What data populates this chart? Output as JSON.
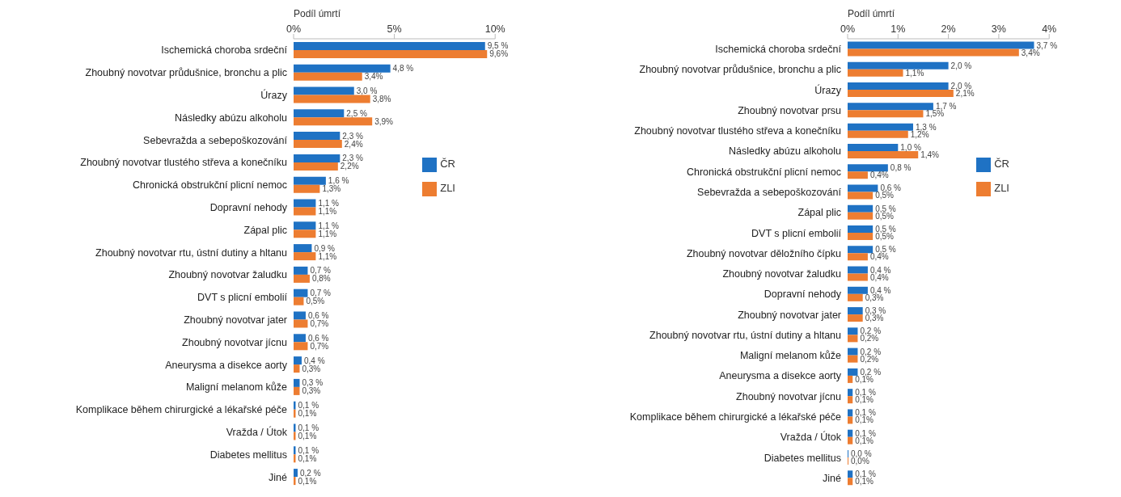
{
  "chart_data": [
    {
      "type": "bar",
      "orientation": "horizontal",
      "xlabel": "Podíl úmrtí",
      "xlim": [
        0,
        10
      ],
      "xticks": [
        {
          "value": 0,
          "label": "0%"
        },
        {
          "value": 5,
          "label": "5%"
        },
        {
          "value": 10,
          "label": "10%"
        }
      ],
      "legend": "right",
      "grid": false,
      "categories": [
        "Ischemická choroba srdeční",
        "Zhoubný novotvar průdušnice, bronchu a plic",
        "Úrazy",
        "Následky abúzu alkoholu",
        "Sebevražda a sebepoškozování",
        "Zhoubný novotvar tlustého střeva a konečníku",
        "Chronická obstrukční plicní nemoc",
        "Dopravní nehody",
        "Zápal plic",
        "Zhoubný novotvar rtu, ústní dutiny a hltanu",
        "Zhoubný novotvar žaludku",
        "DVT s plicní embolií",
        "Zhoubný novotvar jater",
        "Zhoubný novotvar jícnu",
        "Aneurysma a disekce aorty",
        "Maligní melanom kůže",
        "Komplikace během chirurgické a lékařské péče",
        "Vražda / Útok",
        "Diabetes mellitus",
        "Jiné"
      ],
      "series": [
        {
          "name": "ČR",
          "color": "#1f72c4",
          "values": [
            9.5,
            4.8,
            3.0,
            2.5,
            2.3,
            2.3,
            1.6,
            1.1,
            1.1,
            0.9,
            0.7,
            0.7,
            0.6,
            0.6,
            0.4,
            0.3,
            0.1,
            0.1,
            0.1,
            0.2
          ],
          "value_labels": [
            "9,5 %",
            "4,8 %",
            "3,0 %",
            "2,5 %",
            "2,3 %",
            "2,3 %",
            "1,6 %",
            "1,1 %",
            "1,1 %",
            "0,9 %",
            "0,7 %",
            "0,7 %",
            "0,6 %",
            "0,6 %",
            "0,4 %",
            "0,3 %",
            "0,1 %",
            "0,1 %",
            "0,1 %",
            "0,2 %"
          ]
        },
        {
          "name": "ZLI",
          "color": "#ed7d31",
          "values": [
            9.6,
            3.4,
            3.8,
            3.9,
            2.4,
            2.2,
            1.3,
            1.1,
            1.1,
            1.1,
            0.8,
            0.5,
            0.7,
            0.7,
            0.3,
            0.3,
            0.1,
            0.1,
            0.1,
            0.1
          ],
          "value_labels": [
            "9,6%",
            "3,4%",
            "3,8%",
            "3,9%",
            "2,4%",
            "2,2%",
            "1,3%",
            "1,1%",
            "1,1%",
            "1,1%",
            "0,8%",
            "0,5%",
            "0,7%",
            "0,7%",
            "0,3%",
            "0,3%",
            "0,1%",
            "0,1%",
            "0,1%",
            "0,1%"
          ]
        }
      ]
    },
    {
      "type": "bar",
      "orientation": "horizontal",
      "xlabel": "Podíl úmrtí",
      "xlim": [
        0,
        4
      ],
      "xticks": [
        {
          "value": 0,
          "label": "0%"
        },
        {
          "value": 1,
          "label": "1%"
        },
        {
          "value": 2,
          "label": "2%"
        },
        {
          "value": 3,
          "label": "3%"
        },
        {
          "value": 4,
          "label": "4%"
        }
      ],
      "legend": "right",
      "grid": false,
      "categories": [
        "Ischemická choroba srdeční",
        "Zhoubný novotvar průdušnice, bronchu a plic",
        "Úrazy",
        "Zhoubný novotvar prsu",
        "Zhoubný novotvar tlustého střeva a konečníku",
        "Následky abúzu alkoholu",
        "Chronická obstrukční plicní nemoc",
        "Sebevražda a sebepoškozování",
        "Zápal plic",
        "DVT s plicní embolií",
        "Zhoubný novotvar děložního čípku",
        "Zhoubný novotvar žaludku",
        "Dopravní nehody",
        "Zhoubný novotvar jater",
        "Zhoubný novotvar rtu, ústní dutiny a hltanu",
        "Maligní melanom kůže",
        "Aneurysma a disekce aorty",
        "Zhoubný novotvar jícnu",
        "Komplikace během chirurgické a lékařské péče",
        "Vražda / Útok",
        "Diabetes mellitus",
        "Jiné"
      ],
      "series": [
        {
          "name": "ČR",
          "color": "#1f72c4",
          "values": [
            3.7,
            2.0,
            2.0,
            1.7,
            1.3,
            1.0,
            0.8,
            0.6,
            0.5,
            0.5,
            0.5,
            0.4,
            0.4,
            0.3,
            0.2,
            0.2,
            0.2,
            0.1,
            0.1,
            0.1,
            0.0,
            0.1
          ],
          "value_labels": [
            "3,7 %",
            "2,0 %",
            "2,0 %",
            "1,7 %",
            "1,3 %",
            "1,0 %",
            "0,8 %",
            "0,6 %",
            "0,5 %",
            "0,5 %",
            "0,5 %",
            "0,4 %",
            "0,4 %",
            "0,3 %",
            "0,2 %",
            "0,2 %",
            "0,2 %",
            "0,1 %",
            "0,1 %",
            "0,1 %",
            "0,0 %",
            "0,1 %"
          ]
        },
        {
          "name": "ZLI",
          "color": "#ed7d31",
          "values": [
            3.4,
            1.1,
            2.1,
            1.5,
            1.2,
            1.4,
            0.4,
            0.5,
            0.5,
            0.5,
            0.4,
            0.4,
            0.3,
            0.3,
            0.2,
            0.2,
            0.1,
            0.1,
            0.1,
            0.1,
            0.0,
            0.1
          ],
          "value_labels": [
            "3,4%",
            "1,1%",
            "2,1%",
            "1,5%",
            "1,2%",
            "1,4%",
            "0,4%",
            "0,5%",
            "0,5%",
            "0,5%",
            "0,4%",
            "0,4%",
            "0,3%",
            "0,3%",
            "0,2%",
            "0,2%",
            "0,1%",
            "0,1%",
            "0,1%",
            "0,1%",
            "0,0%",
            "0,1%"
          ]
        }
      ]
    }
  ]
}
